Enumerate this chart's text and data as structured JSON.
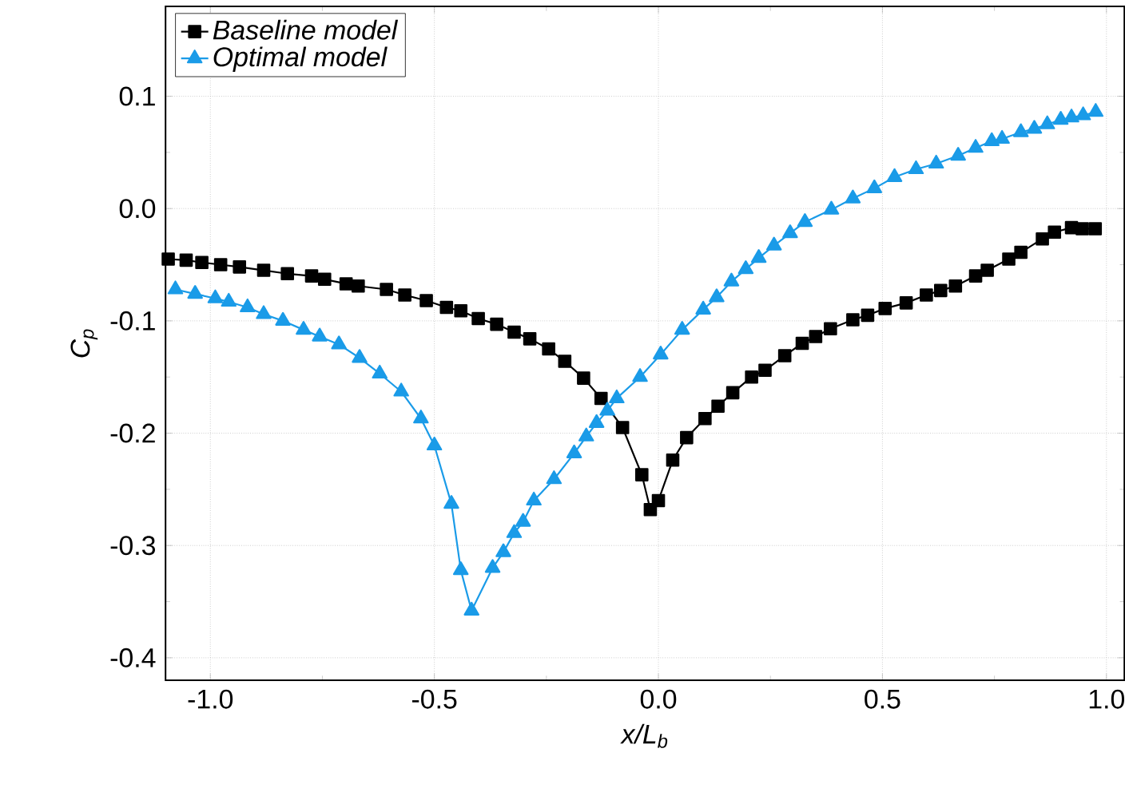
{
  "chart_data": {
    "type": "line",
    "xlabel": "x/L$_{b}$",
    "ylabel": "C$_{p}$",
    "xlim": [
      -1.1,
      1.04
    ],
    "ylim": [
      -0.42,
      0.18
    ],
    "xticks": [
      {
        "value": -1,
        "label": "-1.0"
      },
      -0.5,
      {
        "value": 0,
        "label": "0.0"
      },
      0.5,
      {
        "value": 1,
        "label": "1.0"
      }
    ],
    "yticks": [
      -0.4,
      -0.3,
      -0.2,
      -0.1,
      {
        "value": 0,
        "label": "0.0"
      },
      0.1
    ],
    "grid": true,
    "legend": "top left",
    "line_style": "solid",
    "series": [
      {
        "name": "Baseline model",
        "color": "#000000",
        "marker": "square",
        "x": [
          -1.094,
          -1.054,
          -1.019,
          -0.977,
          -0.935,
          -0.881,
          -0.828,
          -0.774,
          -0.745,
          -0.697,
          -0.67,
          -0.607,
          -0.566,
          -0.518,
          -0.473,
          -0.441,
          -0.402,
          -0.361,
          -0.322,
          -0.287,
          -0.245,
          -0.209,
          -0.167,
          -0.128,
          -0.08,
          -0.037,
          -0.018,
          0.0,
          0.032,
          0.063,
          0.104,
          0.133,
          0.166,
          0.208,
          0.238,
          0.282,
          0.321,
          0.351,
          0.384,
          0.434,
          0.467,
          0.506,
          0.553,
          0.598,
          0.63,
          0.663,
          0.708,
          0.734,
          0.782,
          0.809,
          0.857,
          0.884,
          0.922,
          0.946,
          0.975
        ],
        "values": [
          -0.045,
          -0.046,
          -0.048,
          -0.05,
          -0.052,
          -0.055,
          -0.058,
          -0.06,
          -0.063,
          -0.067,
          -0.069,
          -0.072,
          -0.077,
          -0.082,
          -0.088,
          -0.091,
          -0.098,
          -0.103,
          -0.11,
          -0.116,
          -0.125,
          -0.136,
          -0.151,
          -0.169,
          -0.195,
          -0.237,
          -0.268,
          -0.26,
          -0.224,
          -0.204,
          -0.187,
          -0.176,
          -0.164,
          -0.15,
          -0.144,
          -0.131,
          -0.12,
          -0.114,
          -0.107,
          -0.099,
          -0.095,
          -0.089,
          -0.084,
          -0.077,
          -0.073,
          -0.069,
          -0.06,
          -0.055,
          -0.045,
          -0.039,
          -0.027,
          -0.021,
          -0.017,
          -0.018,
          -0.018
        ]
      },
      {
        "name": "Optimal model",
        "color": "#1a9be8",
        "marker": "triangle",
        "x": [
          -1.078,
          -1.034,
          -0.989,
          -0.959,
          -0.917,
          -0.881,
          -0.838,
          -0.792,
          -0.756,
          -0.713,
          -0.667,
          -0.622,
          -0.574,
          -0.53,
          -0.5,
          -0.462,
          -0.441,
          -0.417,
          -0.37,
          -0.346,
          -0.322,
          -0.302,
          -0.278,
          -0.233,
          -0.188,
          -0.161,
          -0.138,
          -0.114,
          -0.093,
          -0.041,
          0.005,
          0.053,
          0.1,
          0.13,
          0.163,
          0.195,
          0.224,
          0.258,
          0.294,
          0.327,
          0.386,
          0.434,
          0.482,
          0.527,
          0.575,
          0.62,
          0.669,
          0.708,
          0.744,
          0.767,
          0.809,
          0.839,
          0.868,
          0.898,
          0.922,
          0.948,
          0.976
        ],
        "values": [
          -0.072,
          -0.076,
          -0.08,
          -0.083,
          -0.088,
          -0.094,
          -0.1,
          -0.108,
          -0.114,
          -0.121,
          -0.133,
          -0.147,
          -0.163,
          -0.187,
          -0.211,
          -0.263,
          -0.322,
          -0.358,
          -0.32,
          -0.306,
          -0.289,
          -0.279,
          -0.26,
          -0.241,
          -0.218,
          -0.203,
          -0.191,
          -0.18,
          -0.169,
          -0.15,
          -0.13,
          -0.108,
          -0.09,
          -0.079,
          -0.065,
          -0.054,
          -0.044,
          -0.033,
          -0.022,
          -0.012,
          -0.001,
          0.009,
          0.018,
          0.028,
          0.035,
          0.04,
          0.047,
          0.054,
          0.06,
          0.062,
          0.068,
          0.071,
          0.075,
          0.079,
          0.081,
          0.083,
          0.086
        ]
      }
    ]
  }
}
